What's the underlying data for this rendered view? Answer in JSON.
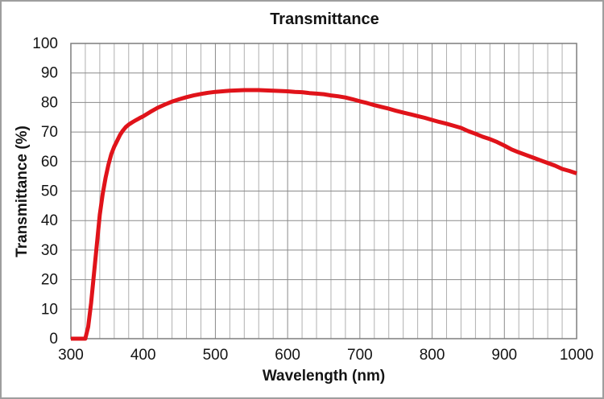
{
  "chart_data": {
    "type": "line",
    "title": "Transmittance",
    "xlabel": "Wavelength (nm)",
    "ylabel": "Transmittance (%)",
    "xlim": [
      300,
      1000
    ],
    "ylim": [
      0,
      100
    ],
    "x_major_ticks": [
      300,
      400,
      500,
      600,
      700,
      800,
      900,
      1000
    ],
    "x_minor_step": 20,
    "y_major_ticks": [
      0,
      10,
      20,
      30,
      40,
      50,
      60,
      70,
      80,
      90,
      100
    ],
    "grid": "on",
    "legend": "none",
    "colors": {
      "line": "#e0131a",
      "grid_minor": "#b0b0b0",
      "grid_major": "#8a8a8a",
      "plot_border": "#7d7d7d",
      "text": "#141414",
      "frame_border": "#9e9e9e",
      "background": "#ffffff"
    },
    "series": [
      {
        "name": "Transmittance",
        "points": [
          [
            300,
            0
          ],
          [
            305,
            0
          ],
          [
            310,
            0
          ],
          [
            315,
            0
          ],
          [
            320,
            0
          ],
          [
            324,
            4
          ],
          [
            328,
            12
          ],
          [
            332,
            22
          ],
          [
            336,
            32
          ],
          [
            340,
            42
          ],
          [
            344,
            49
          ],
          [
            348,
            54.5
          ],
          [
            352,
            59
          ],
          [
            356,
            62.5
          ],
          [
            360,
            65
          ],
          [
            364,
            67
          ],
          [
            368,
            69
          ],
          [
            372,
            70.5
          ],
          [
            376,
            71.7
          ],
          [
            380,
            72.5
          ],
          [
            385,
            73.3
          ],
          [
            390,
            74
          ],
          [
            395,
            74.7
          ],
          [
            400,
            75.3
          ],
          [
            410,
            76.8
          ],
          [
            420,
            78.2
          ],
          [
            430,
            79.3
          ],
          [
            440,
            80.3
          ],
          [
            450,
            81.1
          ],
          [
            460,
            81.8
          ],
          [
            470,
            82.4
          ],
          [
            480,
            82.9
          ],
          [
            490,
            83.3
          ],
          [
            500,
            83.6
          ],
          [
            510,
            83.8
          ],
          [
            520,
            84
          ],
          [
            530,
            84.1
          ],
          [
            540,
            84.2
          ],
          [
            550,
            84.2
          ],
          [
            560,
            84.2
          ],
          [
            570,
            84.1
          ],
          [
            580,
            84
          ],
          [
            590,
            83.9
          ],
          [
            600,
            83.8
          ],
          [
            610,
            83.6
          ],
          [
            620,
            83.5
          ],
          [
            630,
            83.2
          ],
          [
            640,
            83
          ],
          [
            650,
            82.8
          ],
          [
            660,
            82.4
          ],
          [
            670,
            82.1
          ],
          [
            680,
            81.7
          ],
          [
            690,
            81.1
          ],
          [
            700,
            80.4
          ],
          [
            710,
            79.8
          ],
          [
            720,
            79.1
          ],
          [
            730,
            78.5
          ],
          [
            740,
            77.9
          ],
          [
            750,
            77.2
          ],
          [
            760,
            76.6
          ],
          [
            770,
            76
          ],
          [
            780,
            75.4
          ],
          [
            790,
            74.8
          ],
          [
            800,
            74.1
          ],
          [
            810,
            73.4
          ],
          [
            820,
            72.8
          ],
          [
            830,
            72.1
          ],
          [
            840,
            71.4
          ],
          [
            850,
            70.3
          ],
          [
            860,
            69.4
          ],
          [
            870,
            68.4
          ],
          [
            880,
            67.6
          ],
          [
            890,
            66.6
          ],
          [
            900,
            65.4
          ],
          [
            910,
            64.1
          ],
          [
            920,
            63.1
          ],
          [
            930,
            62.2
          ],
          [
            940,
            61.3
          ],
          [
            950,
            60.4
          ],
          [
            960,
            59.5
          ],
          [
            970,
            58.6
          ],
          [
            980,
            57.5
          ],
          [
            990,
            56.8
          ],
          [
            1000,
            56
          ]
        ]
      }
    ]
  }
}
